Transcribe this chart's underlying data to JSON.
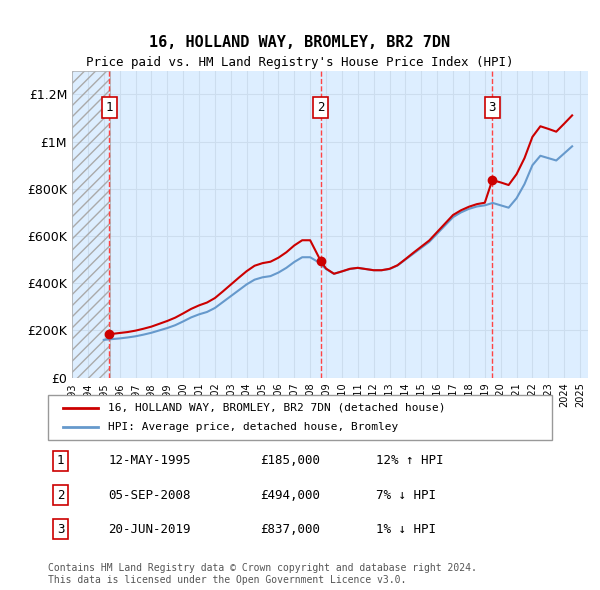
{
  "title": "16, HOLLAND WAY, BROMLEY, BR2 7DN",
  "subtitle": "Price paid vs. HM Land Registry's House Price Index (HPI)",
  "xlim_start": 1993.0,
  "xlim_end": 2025.5,
  "ylim": [
    0,
    1300000
  ],
  "yticks": [
    0,
    200000,
    400000,
    600000,
    800000,
    1000000,
    1200000
  ],
  "ytick_labels": [
    "£0",
    "£200K",
    "£400K",
    "£600K",
    "£800K",
    "£1M",
    "£1.2M"
  ],
  "xtick_years": [
    1993,
    1994,
    1995,
    1996,
    1997,
    1998,
    1999,
    2000,
    2001,
    2002,
    2003,
    2004,
    2005,
    2006,
    2007,
    2008,
    2009,
    2010,
    2011,
    2012,
    2013,
    2014,
    2015,
    2016,
    2017,
    2018,
    2019,
    2020,
    2021,
    2022,
    2023,
    2024,
    2025
  ],
  "hatch_region_end": 1995.4,
  "hatch_region_start": 1993.0,
  "sale_dates": [
    1995.36,
    2008.67,
    2019.47
  ],
  "sale_prices": [
    185000,
    494000,
    837000
  ],
  "sale_labels": [
    "1",
    "2",
    "3"
  ],
  "hpi_line_color": "#6699cc",
  "price_line_color": "#cc0000",
  "sale_marker_color": "#cc0000",
  "dashed_line_color": "#ff4444",
  "grid_color": "#ccddee",
  "hatch_color": "#bbbbbb",
  "background_plot": "#ddeeff",
  "legend_line1": "16, HOLLAND WAY, BROMLEY, BR2 7DN (detached house)",
  "legend_line2": "HPI: Average price, detached house, Bromley",
  "table_rows": [
    [
      "1",
      "12-MAY-1995",
      "£185,000",
      "12% ↑ HPI"
    ],
    [
      "2",
      "05-SEP-2008",
      "£494,000",
      "7% ↓ HPI"
    ],
    [
      "3",
      "20-JUN-2019",
      "£837,000",
      "1% ↓ HPI"
    ]
  ],
  "footer": "Contains HM Land Registry data © Crown copyright and database right 2024.\nThis data is licensed under the Open Government Licence v3.0.",
  "hpi_data_x": [
    1995.0,
    1995.5,
    1996.0,
    1996.5,
    1997.0,
    1997.5,
    1998.0,
    1998.5,
    1999.0,
    1999.5,
    2000.0,
    2000.5,
    2001.0,
    2001.5,
    2002.0,
    2002.5,
    2003.0,
    2003.5,
    2004.0,
    2004.5,
    2005.0,
    2005.5,
    2006.0,
    2006.5,
    2007.0,
    2007.5,
    2008.0,
    2008.5,
    2009.0,
    2009.5,
    2010.0,
    2010.5,
    2011.0,
    2011.5,
    2012.0,
    2012.5,
    2013.0,
    2013.5,
    2014.0,
    2014.5,
    2015.0,
    2015.5,
    2016.0,
    2016.5,
    2017.0,
    2017.5,
    2018.0,
    2018.5,
    2019.0,
    2019.5,
    2020.0,
    2020.5,
    2021.0,
    2021.5,
    2022.0,
    2022.5,
    2023.0,
    2023.5,
    2024.0,
    2024.5
  ],
  "hpi_data_y": [
    160000,
    163000,
    166000,
    170000,
    175000,
    182000,
    190000,
    200000,
    210000,
    222000,
    238000,
    255000,
    268000,
    278000,
    295000,
    320000,
    345000,
    370000,
    395000,
    415000,
    425000,
    430000,
    445000,
    465000,
    490000,
    510000,
    510000,
    490000,
    460000,
    440000,
    450000,
    460000,
    465000,
    460000,
    455000,
    455000,
    460000,
    475000,
    500000,
    525000,
    550000,
    575000,
    610000,
    645000,
    680000,
    700000,
    715000,
    725000,
    730000,
    740000,
    730000,
    720000,
    760000,
    820000,
    900000,
    940000,
    930000,
    920000,
    950000,
    980000
  ],
  "price_data_x": [
    1995.36,
    1995.5,
    1996.0,
    1996.5,
    1997.0,
    1997.5,
    1998.0,
    1998.5,
    1999.0,
    1999.5,
    2000.0,
    2000.5,
    2001.0,
    2001.5,
    2002.0,
    2002.5,
    2003.0,
    2003.5,
    2004.0,
    2004.5,
    2005.0,
    2005.5,
    2006.0,
    2006.5,
    2007.0,
    2007.5,
    2008.0,
    2008.67,
    2008.67,
    2009.0,
    2009.5,
    2010.0,
    2010.5,
    2011.0,
    2011.5,
    2012.0,
    2012.5,
    2013.0,
    2013.5,
    2014.0,
    2014.5,
    2015.0,
    2015.5,
    2016.0,
    2016.5,
    2017.0,
    2017.5,
    2018.0,
    2018.5,
    2019.0,
    2019.47,
    2019.47,
    2020.0,
    2020.5,
    2021.0,
    2021.5,
    2022.0,
    2022.5,
    2023.0,
    2023.5,
    2024.0,
    2024.5
  ],
  "price_data_y": [
    185000,
    185000,
    189000,
    193000,
    199000,
    207000,
    216000,
    228000,
    240000,
    254000,
    272000,
    291000,
    306000,
    318000,
    337000,
    365000,
    394000,
    423000,
    451000,
    474000,
    485000,
    491000,
    508000,
    531000,
    560000,
    582000,
    582000,
    494000,
    494000,
    462000,
    440000,
    450000,
    461000,
    465000,
    460000,
    455000,
    455000,
    461000,
    476000,
    502000,
    529000,
    555000,
    581000,
    617000,
    653000,
    689000,
    709000,
    724000,
    735000,
    741000,
    837000,
    837000,
    827000,
    816000,
    862000,
    930000,
    1020000,
    1065000,
    1054000,
    1042000,
    1076000,
    1111000
  ]
}
